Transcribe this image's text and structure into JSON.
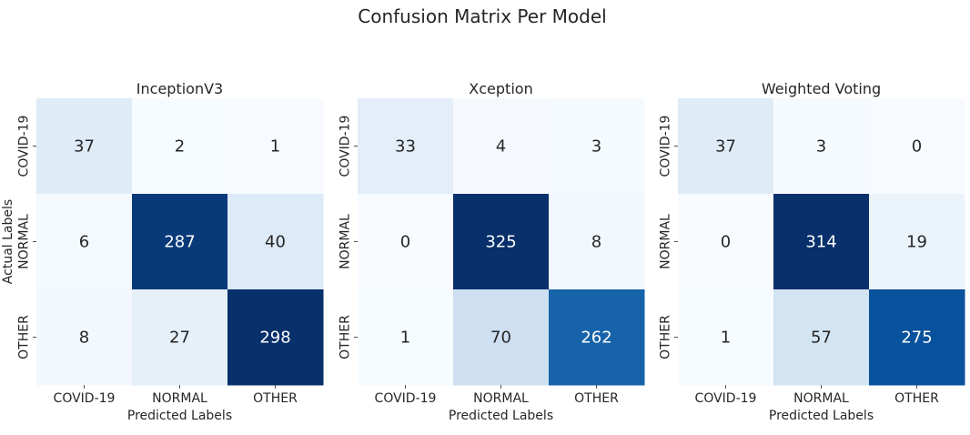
{
  "title": "Confusion Matrix Per Model",
  "chart_data": [
    {
      "type": "heatmap",
      "title": "InceptionV3",
      "xlabel": "Predicted Labels",
      "ylabel": "Actual Labels",
      "x_categories": [
        "COVID-19",
        "NORMAL",
        "OTHER"
      ],
      "y_categories": [
        "COVID-19",
        "NORMAL",
        "OTHER"
      ],
      "values": [
        [
          37,
          2,
          1
        ],
        [
          6,
          287,
          40
        ],
        [
          8,
          27,
          298
        ]
      ],
      "colormap": "Blues"
    },
    {
      "type": "heatmap",
      "title": "Xception",
      "xlabel": "Predicted Labels",
      "ylabel": "",
      "x_categories": [
        "COVID-19",
        "NORMAL",
        "OTHER"
      ],
      "y_categories": [
        "COVID-19",
        "NORMAL",
        "OTHER"
      ],
      "values": [
        [
          33,
          4,
          3
        ],
        [
          0,
          325,
          8
        ],
        [
          1,
          70,
          262
        ]
      ],
      "colormap": "Blues"
    },
    {
      "type": "heatmap",
      "title": "Weighted Voting",
      "xlabel": "Predicted Labels",
      "ylabel": "",
      "x_categories": [
        "COVID-19",
        "NORMAL",
        "OTHER"
      ],
      "y_categories": [
        "COVID-19",
        "NORMAL",
        "OTHER"
      ],
      "values": [
        [
          37,
          3,
          0
        ],
        [
          0,
          314,
          19
        ],
        [
          1,
          57,
          275
        ]
      ],
      "colormap": "Blues"
    }
  ]
}
